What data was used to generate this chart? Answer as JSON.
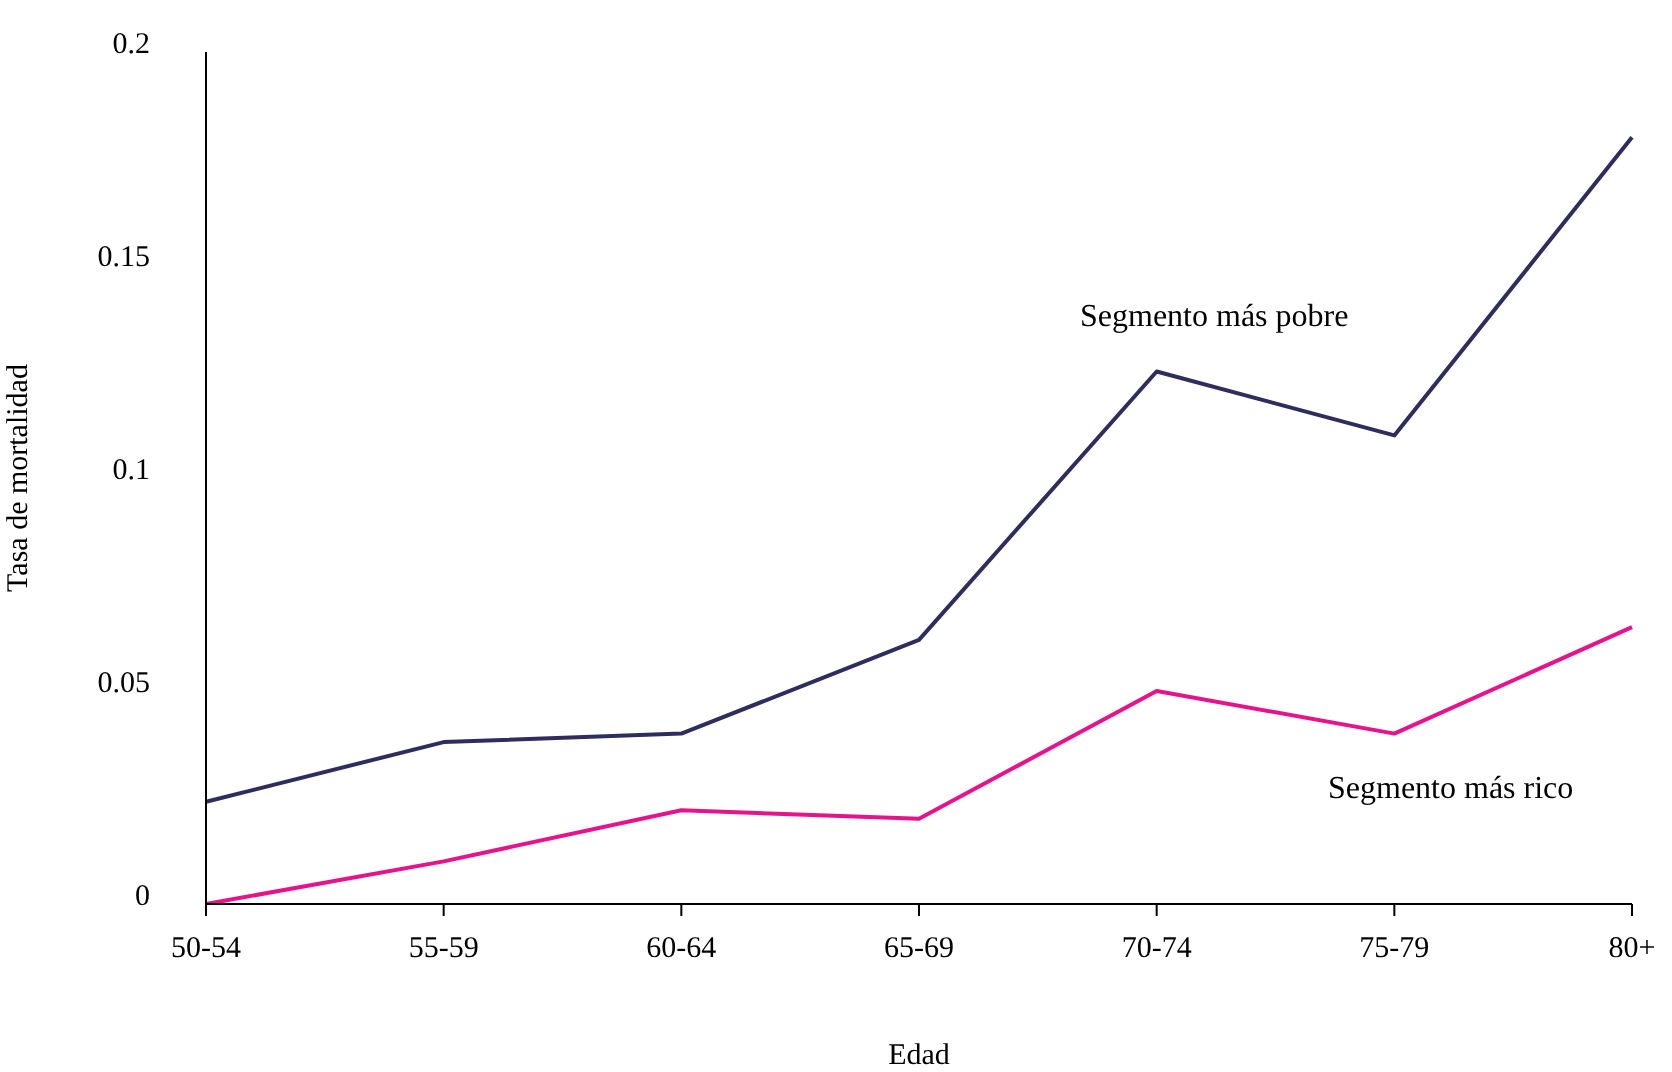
{
  "chart_data": {
    "type": "line",
    "xlabel": "Edad",
    "ylabel": "Tasa de mortalidad",
    "categories": [
      "50-54",
      "55-59",
      "60-64",
      "65-69",
      "70-74",
      "75-79",
      "80+"
    ],
    "series": [
      {
        "name": "Segmento más pobre",
        "color": "#2e2d5e",
        "values": [
          0.024,
          0.038,
          0.04,
          0.062,
          0.125,
          0.11,
          0.18
        ]
      },
      {
        "name": "Segmento más rico",
        "color": "#e6138c",
        "values": [
          0.0,
          0.01,
          0.022,
          0.02,
          0.05,
          0.04,
          0.065
        ]
      }
    ],
    "ylim": [
      0,
      0.2
    ],
    "yticks": [
      0,
      0.05,
      0.1,
      0.15,
      0.2
    ],
    "grid": false,
    "legend": false,
    "marker": "none",
    "line_style": "solid"
  }
}
